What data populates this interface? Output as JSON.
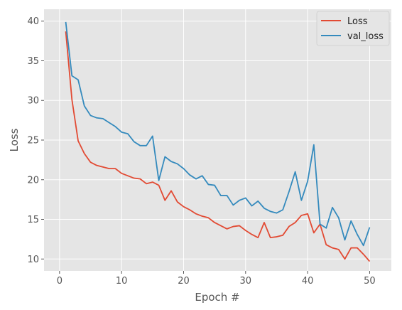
{
  "chart_data": {
    "type": "line",
    "title": "",
    "xlabel": "Epoch #",
    "ylabel": "Loss",
    "xlim": [
      -2.5,
      53.5
    ],
    "ylim": [
      8.5,
      41.5
    ],
    "xticks": [
      0,
      10,
      20,
      30,
      40,
      50
    ],
    "yticks": [
      10,
      15,
      20,
      25,
      30,
      35,
      40
    ],
    "grid": true,
    "legend_position": "top-right",
    "x": [
      1,
      2,
      3,
      4,
      5,
      6,
      7,
      8,
      9,
      10,
      11,
      12,
      13,
      14,
      15,
      16,
      17,
      18,
      19,
      20,
      21,
      22,
      23,
      24,
      25,
      26,
      27,
      28,
      29,
      30,
      31,
      32,
      33,
      34,
      35,
      36,
      37,
      38,
      39,
      40,
      41,
      42,
      43,
      44,
      45,
      46,
      47,
      48,
      49,
      50
    ],
    "series": [
      {
        "name": "Loss",
        "color": "#E24A33",
        "values": [
          38.7,
          30.1,
          24.9,
          23.3,
          22.2,
          21.8,
          21.6,
          21.4,
          21.4,
          20.8,
          20.5,
          20.2,
          20.1,
          19.5,
          19.7,
          19.3,
          17.4,
          18.6,
          17.2,
          16.6,
          16.2,
          15.7,
          15.4,
          15.2,
          14.6,
          14.2,
          13.8,
          14.1,
          14.2,
          13.6,
          13.1,
          12.7,
          14.6,
          12.7,
          12.8,
          13.0,
          14.1,
          14.6,
          15.5,
          15.7,
          13.3,
          14.4,
          11.8,
          11.4,
          11.2,
          10.0,
          11.4,
          11.4,
          10.6,
          9.7
        ]
      },
      {
        "name": "val_loss",
        "color": "#348ABD",
        "values": [
          39.9,
          33.1,
          32.6,
          29.3,
          28.1,
          27.8,
          27.7,
          27.2,
          26.7,
          26.0,
          25.8,
          24.8,
          24.3,
          24.3,
          25.5,
          19.9,
          22.9,
          22.3,
          22.0,
          21.4,
          20.6,
          20.1,
          20.5,
          19.4,
          19.3,
          18.0,
          18.0,
          16.8,
          17.4,
          17.7,
          16.7,
          17.3,
          16.4,
          16.0,
          15.8,
          16.2,
          18.5,
          21.0,
          17.4,
          19.8,
          24.4,
          14.4,
          13.9,
          16.5,
          15.2,
          12.4,
          14.8,
          13.1,
          11.7,
          14.0
        ]
      }
    ]
  }
}
